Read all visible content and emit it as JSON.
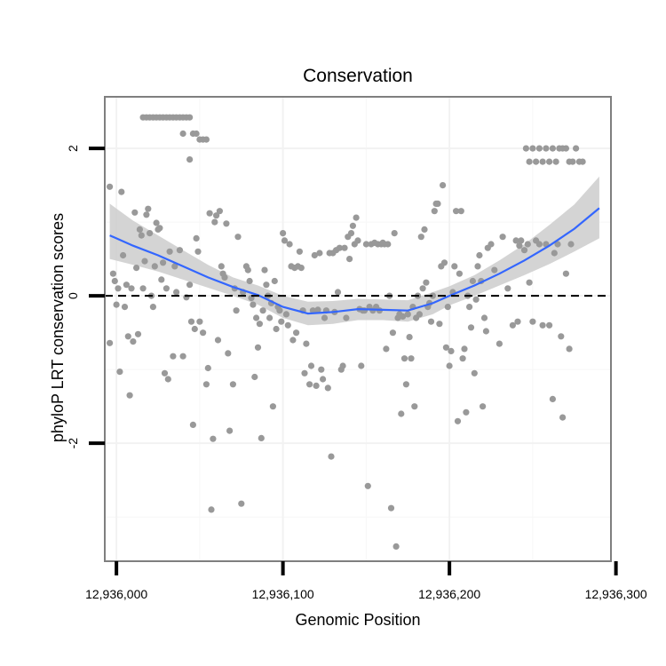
{
  "chart_data": {
    "type": "scatter",
    "title": "Conservation",
    "xlabel": "Genomic Position",
    "ylabel": "phyloP LRT conservation scores",
    "xlim": [
      12935993,
      12936297
    ],
    "ylim": [
      -3.6,
      2.7
    ],
    "x_ticks": [
      12936000,
      12936100,
      12936200,
      12936300
    ],
    "x_tick_labels": [
      "12,936,000",
      "12,936,100",
      "12,936,200",
      "12,936,300"
    ],
    "y_ticks": [
      -2,
      0,
      2
    ],
    "y_tick_labels": [
      "-2",
      "0",
      "2"
    ],
    "reference_line": {
      "y": 0,
      "style": "dashed"
    },
    "grid": true,
    "legend": "none",
    "colors": {
      "points": "#999999",
      "smooth_line": "#3366ff",
      "confidence_band": "#cccccc",
      "panel_border": "#7f7f7f",
      "grid": "#f2f2f2"
    },
    "smooth": {
      "x": [
        12935996,
        12936010,
        12936025,
        12936040,
        12936055,
        12936070,
        12936085,
        12936100,
        12936115,
        12936130,
        12936145,
        12936160,
        12936175,
        12936190,
        12936200,
        12936215,
        12936230,
        12936245,
        12936260,
        12936275,
        12936290
      ],
      "y": [
        0.82,
        0.68,
        0.55,
        0.4,
        0.25,
        0.12,
        0.01,
        -0.15,
        -0.24,
        -0.22,
        -0.18,
        -0.19,
        -0.2,
        -0.1,
        0.0,
        0.14,
        0.3,
        0.48,
        0.68,
        0.91,
        1.19
      ],
      "lower": [
        0.5,
        0.42,
        0.33,
        0.22,
        0.11,
        0.0,
        -0.12,
        -0.3,
        -0.4,
        -0.38,
        -0.33,
        -0.33,
        -0.35,
        -0.25,
        -0.13,
        0.0,
        0.14,
        0.28,
        0.43,
        0.6,
        0.78
      ],
      "upper": [
        1.25,
        1.02,
        0.82,
        0.62,
        0.42,
        0.25,
        0.14,
        0.0,
        -0.08,
        -0.07,
        -0.04,
        -0.05,
        -0.06,
        0.05,
        0.13,
        0.28,
        0.48,
        0.7,
        0.96,
        1.24,
        1.62
      ]
    },
    "points": [
      [
        12935996,
        1.48
      ],
      [
        12935996,
        -0.64
      ],
      [
        12935998,
        0.3
      ],
      [
        12935999,
        0.2
      ],
      [
        12936000,
        -0.12
      ],
      [
        12936001,
        0.1
      ],
      [
        12936002,
        -1.03
      ],
      [
        12936003,
        1.41
      ],
      [
        12936004,
        0.55
      ],
      [
        12936005,
        -0.15
      ],
      [
        12936006,
        0.15
      ],
      [
        12936007,
        -0.55
      ],
      [
        12936008,
        -1.35
      ],
      [
        12936009,
        0.1
      ],
      [
        12936010,
        -0.62
      ],
      [
        12936011,
        1.13
      ],
      [
        12936012,
        0.38
      ],
      [
        12936013,
        -0.52
      ],
      [
        12936014,
        0.9
      ],
      [
        12936015,
        0.82
      ],
      [
        12936016,
        0.1
      ],
      [
        12936017,
        0.47
      ],
      [
        12936018,
        1.1
      ],
      [
        12936019,
        1.18
      ],
      [
        12936020,
        0.85
      ],
      [
        12936021,
        0.0
      ],
      [
        12936022,
        -0.15
      ],
      [
        12936023,
        0.4
      ],
      [
        12936024,
        0.99
      ],
      [
        12936025,
        0.9
      ],
      [
        12936026,
        0.92
      ],
      [
        12936027,
        0.22
      ],
      [
        12936028,
        0.45
      ],
      [
        12936029,
        -1.05
      ],
      [
        12936030,
        0.1
      ],
      [
        12936031,
        -1.13
      ],
      [
        12936032,
        0.6
      ],
      [
        12936034,
        -0.82
      ],
      [
        12936035,
        0.4
      ],
      [
        12936036,
        0.05
      ],
      [
        12936038,
        0.62
      ],
      [
        12936040,
        -0.82
      ],
      [
        12936042,
        -0.02
      ],
      [
        12936044,
        0.15
      ],
      [
        12936045,
        -0.35
      ],
      [
        12936046,
        -1.75
      ],
      [
        12936047,
        -0.45
      ],
      [
        12936048,
        0.78
      ],
      [
        12936049,
        0.6
      ],
      [
        12936050,
        -0.35
      ],
      [
        12936052,
        -0.5
      ],
      [
        12936054,
        -1.2
      ],
      [
        12936055,
        -0.98
      ],
      [
        12936056,
        1.12
      ],
      [
        12936057,
        -2.9
      ],
      [
        12936058,
        -1.94
      ],
      [
        12936059,
        1.0
      ],
      [
        12936060,
        1.09
      ],
      [
        12936061,
        -0.6
      ],
      [
        12936062,
        1.15
      ],
      [
        12936063,
        0.4
      ],
      [
        12936064,
        0.3
      ],
      [
        12936065,
        0.25
      ],
      [
        12936066,
        0.98
      ],
      [
        12936067,
        -0.78
      ],
      [
        12936068,
        -1.83
      ],
      [
        12936070,
        -1.2
      ],
      [
        12936071,
        0.1
      ],
      [
        12936072,
        -0.2
      ],
      [
        12936073,
        0.8
      ],
      [
        12936075,
        -2.82
      ],
      [
        12936076,
        0.05
      ],
      [
        12936078,
        0.4
      ],
      [
        12936079,
        0.35
      ],
      [
        12936080,
        0.2
      ],
      [
        12936081,
        -0.03
      ],
      [
        12936082,
        -0.12
      ],
      [
        12936083,
        -1.1
      ],
      [
        12936084,
        -0.3
      ],
      [
        12936085,
        -0.7
      ],
      [
        12936086,
        -0.38
      ],
      [
        12936087,
        -1.93
      ],
      [
        12936088,
        -0.2
      ],
      [
        12936089,
        0.35
      ],
      [
        12936090,
        0.15
      ],
      [
        12936091,
        0.0
      ],
      [
        12936092,
        -0.3
      ],
      [
        12936093,
        -0.1
      ],
      [
        12936094,
        -1.5
      ],
      [
        12936095,
        0.2
      ],
      [
        12936096,
        -0.45
      ],
      [
        12936097,
        -0.15
      ],
      [
        12936098,
        -0.2
      ],
      [
        12936099,
        -0.35
      ],
      [
        12936100,
        0.85
      ],
      [
        12936101,
        0.75
      ],
      [
        12936102,
        -0.25
      ],
      [
        12936103,
        -0.4
      ],
      [
        12936104,
        0.7
      ],
      [
        12936105,
        0.4
      ],
      [
        12936106,
        -0.6
      ],
      [
        12936107,
        0.38
      ],
      [
        12936108,
        -0.5
      ],
      [
        12936109,
        0.4
      ],
      [
        12936110,
        0.6
      ],
      [
        12936111,
        0.38
      ],
      [
        12936112,
        -0.2
      ],
      [
        12936113,
        -1.05
      ],
      [
        12936114,
        -0.65
      ],
      [
        12936116,
        -1.2
      ],
      [
        12936117,
        -0.95
      ],
      [
        12936118,
        -0.2
      ],
      [
        12936119,
        0.55
      ],
      [
        12936120,
        -1.22
      ],
      [
        12936121,
        -0.19
      ],
      [
        12936122,
        0.58
      ],
      [
        12936123,
        -1.0
      ],
      [
        12936124,
        -1.13
      ],
      [
        12936125,
        -0.3
      ],
      [
        12936126,
        -0.2
      ],
      [
        12936127,
        -1.25
      ],
      [
        12936128,
        0.58
      ],
      [
        12936129,
        -2.18
      ],
      [
        12936130,
        0.58
      ],
      [
        12936131,
        -0.22
      ],
      [
        12936132,
        0.62
      ],
      [
        12936133,
        0.05
      ],
      [
        12936134,
        0.65
      ],
      [
        12936135,
        -1.0
      ],
      [
        12936136,
        -0.95
      ],
      [
        12936137,
        0.65
      ],
      [
        12936138,
        -0.3
      ],
      [
        12936139,
        0.8
      ],
      [
        12936140,
        0.5
      ],
      [
        12936141,
        0.85
      ],
      [
        12936142,
        0.95
      ],
      [
        12936143,
        0.7
      ],
      [
        12936144,
        1.06
      ],
      [
        12936145,
        0.75
      ],
      [
        12936146,
        -0.18
      ],
      [
        12936147,
        -0.95
      ],
      [
        12936148,
        -0.2
      ],
      [
        12936149,
        -0.2
      ],
      [
        12936150,
        0.7
      ],
      [
        12936151,
        -2.58
      ],
      [
        12936152,
        -0.15
      ],
      [
        12936153,
        0.7
      ],
      [
        12936154,
        -0.2
      ],
      [
        12936155,
        0.72
      ],
      [
        12936156,
        -0.15
      ],
      [
        12936157,
        0.7
      ],
      [
        12936158,
        -0.2
      ],
      [
        12936159,
        0.7
      ],
      [
        12936160,
        0.72
      ],
      [
        12936161,
        0.7
      ],
      [
        12936162,
        -0.72
      ],
      [
        12936163,
        0.7
      ],
      [
        12936164,
        0.0
      ],
      [
        12936165,
        -2.88
      ],
      [
        12936166,
        -0.5
      ],
      [
        12936167,
        0.85
      ],
      [
        12936168,
        -3.4
      ],
      [
        12936169,
        -0.3
      ],
      [
        12936170,
        -0.25
      ],
      [
        12936171,
        -1.6
      ],
      [
        12936172,
        -0.28
      ],
      [
        12936173,
        -0.85
      ],
      [
        12936174,
        -1.2
      ],
      [
        12936175,
        -0.25
      ],
      [
        12936176,
        -0.56
      ],
      [
        12936177,
        -0.85
      ],
      [
        12936178,
        -0.15
      ],
      [
        12936179,
        -1.5
      ],
      [
        12936180,
        -0.3
      ],
      [
        12936181,
        0.0
      ],
      [
        12936182,
        -0.25
      ],
      [
        12936183,
        0.8
      ],
      [
        12936184,
        0.1
      ],
      [
        12936185,
        0.9
      ],
      [
        12936186,
        0.18
      ],
      [
        12936187,
        -0.15
      ],
      [
        12936188,
        -0.1
      ],
      [
        12936189,
        -0.35
      ],
      [
        12936190,
        0.0
      ],
      [
        12936191,
        1.15
      ],
      [
        12936192,
        1.25
      ],
      [
        12936193,
        1.25
      ],
      [
        12936194,
        -0.38
      ],
      [
        12936195,
        0.4
      ],
      [
        12936196,
        1.5
      ],
      [
        12936197,
        0.45
      ],
      [
        12936198,
        -0.7
      ],
      [
        12936199,
        -0.15
      ],
      [
        12936200,
        -0.95
      ],
      [
        12936201,
        -0.75
      ],
      [
        12936202,
        0.05
      ],
      [
        12936203,
        0.4
      ],
      [
        12936204,
        1.15
      ],
      [
        12936205,
        -1.7
      ],
      [
        12936206,
        0.3
      ],
      [
        12936207,
        1.15
      ],
      [
        12936208,
        -0.85
      ],
      [
        12936209,
        -0.72
      ],
      [
        12936210,
        -1.58
      ],
      [
        12936211,
        0.0
      ],
      [
        12936212,
        -0.15
      ],
      [
        12936213,
        -0.43
      ],
      [
        12936214,
        0.2
      ],
      [
        12936215,
        -1.05
      ],
      [
        12936216,
        -0.05
      ],
      [
        12936217,
        0.4
      ],
      [
        12936218,
        0.55
      ],
      [
        12936219,
        0.2
      ],
      [
        12936220,
        -1.5
      ],
      [
        12936221,
        -0.3
      ],
      [
        12936222,
        -0.48
      ],
      [
        12936223,
        0.65
      ],
      [
        12936225,
        0.7
      ],
      [
        12936227,
        0.35
      ],
      [
        12936230,
        -0.65
      ],
      [
        12936232,
        0.8
      ],
      [
        12936235,
        0.1
      ],
      [
        12936238,
        -0.4
      ],
      [
        12936240,
        0.75
      ],
      [
        12936241,
        -0.35
      ],
      [
        12936242,
        0.68
      ],
      [
        12936243,
        0.75
      ],
      [
        12936245,
        0.62
      ],
      [
        12936247,
        0.7
      ],
      [
        12936248,
        0.18
      ],
      [
        12936250,
        -0.35
      ],
      [
        12936252,
        0.75
      ],
      [
        12936254,
        0.7
      ],
      [
        12936256,
        -0.4
      ],
      [
        12936258,
        0.7
      ],
      [
        12936260,
        -0.4
      ],
      [
        12936262,
        -1.4
      ],
      [
        12936263,
        0.58
      ],
      [
        12936265,
        0.7
      ],
      [
        12936267,
        -0.55
      ],
      [
        12936268,
        -1.65
      ],
      [
        12936270,
        0.3
      ],
      [
        12936272,
        -0.72
      ],
      [
        12936273,
        0.7
      ],
      [
        12936246,
        2.0
      ],
      [
        12936248,
        1.82
      ],
      [
        12936250,
        2.0
      ],
      [
        12936252,
        1.82
      ],
      [
        12936254,
        2.0
      ],
      [
        12936256,
        1.82
      ],
      [
        12936258,
        2.0
      ],
      [
        12936260,
        1.82
      ],
      [
        12936262,
        2.0
      ],
      [
        12936264,
        1.82
      ],
      [
        12936266,
        2.0
      ],
      [
        12936268,
        2.0
      ],
      [
        12936270,
        2.0
      ],
      [
        12936272,
        1.82
      ],
      [
        12936274,
        1.82
      ],
      [
        12936276,
        2.0
      ],
      [
        12936278,
        1.82
      ],
      [
        12936280,
        1.82
      ],
      [
        12936016,
        2.42
      ],
      [
        12936018,
        2.42
      ],
      [
        12936020,
        2.42
      ],
      [
        12936022,
        2.42
      ],
      [
        12936024,
        2.42
      ],
      [
        12936026,
        2.42
      ],
      [
        12936028,
        2.42
      ],
      [
        12936030,
        2.42
      ],
      [
        12936032,
        2.42
      ],
      [
        12936034,
        2.42
      ],
      [
        12936036,
        2.42
      ],
      [
        12936038,
        2.42
      ],
      [
        12936040,
        2.42
      ],
      [
        12936042,
        2.42
      ],
      [
        12936044,
        2.42
      ],
      [
        12936046,
        2.2
      ],
      [
        12936048,
        2.2
      ],
      [
        12936050,
        2.12
      ],
      [
        12936052,
        2.12
      ],
      [
        12936054,
        2.12
      ],
      [
        12936040,
        2.2
      ],
      [
        12936044,
        1.85
      ]
    ]
  }
}
